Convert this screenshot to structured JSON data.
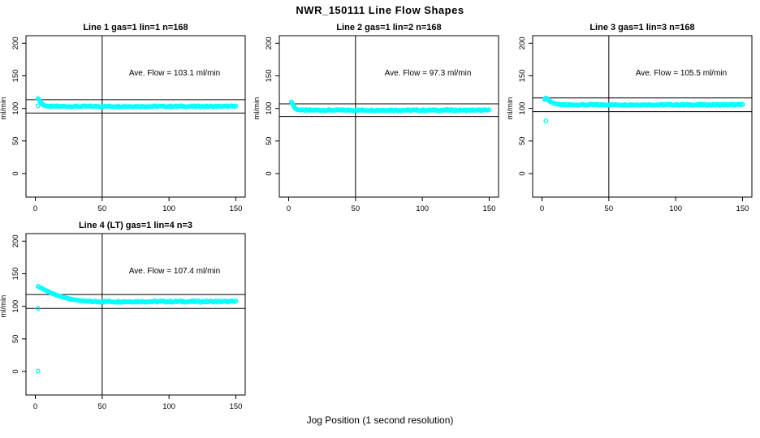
{
  "figure": {
    "title": "NWR_150111  Line Flow Shapes",
    "xlabel": "Jog Position (1 second resolution)",
    "background": "#ffffff",
    "point_color": "#00ffff",
    "line_color": "#000000"
  },
  "chart_data": {
    "type": "scatter",
    "x_ticks": [
      0,
      50,
      100,
      150
    ],
    "y_ticks": [
      0,
      50,
      100,
      150,
      200
    ],
    "xlim": [
      0,
      150
    ],
    "ylim": [
      0,
      200
    ],
    "xlabel": "Jog Position (1 second resolution)",
    "grid": false,
    "legend": "none",
    "plots": [
      {
        "title": "Line 1 gas=1 lin=1 n=168",
        "ylabel": "ml/min",
        "ave_flow": 103.1,
        "annotation": "Ave. Flow =  103.1  ml/min",
        "n": 168,
        "vline_x": 50,
        "ref_lines": [
          92.8,
          113.4
        ],
        "descent": [
          [
            2,
            115
          ],
          [
            2.5,
            114.2
          ],
          [
            3,
            112.5
          ],
          [
            3.5,
            111
          ],
          [
            4,
            109.5
          ],
          [
            4.5,
            108.2
          ],
          [
            5,
            107.1
          ],
          [
            5.5,
            106.2
          ],
          [
            6,
            105.4
          ],
          [
            6.5,
            104.9
          ],
          [
            7,
            104.4
          ],
          [
            8,
            103.8
          ],
          [
            9,
            103.5
          ],
          [
            10,
            103.3
          ]
        ],
        "tail": {
          "x_from": 11,
          "x_to": 150,
          "step": 1,
          "base": 103.1,
          "noise": 0.9
        },
        "outliers": [
          [
            2,
            104
          ]
        ]
      },
      {
        "title": "Line 2 gas=1 lin=2 n=168",
        "ylabel": "ml/min",
        "ave_flow": 97.3,
        "annotation": "Ave. Flow =  97.3  ml/min",
        "n": 168,
        "vline_x": 50,
        "ref_lines": [
          87.6,
          107.0
        ],
        "descent": [
          [
            2,
            110
          ],
          [
            2.5,
            108.5
          ],
          [
            3,
            106.5
          ],
          [
            3.5,
            104.5
          ],
          [
            4,
            102.8
          ],
          [
            4.5,
            101.3
          ],
          [
            5,
            100.2
          ],
          [
            5.5,
            99.3
          ],
          [
            6,
            98.7
          ],
          [
            7,
            98
          ],
          [
            8,
            97.6
          ]
        ],
        "tail": {
          "x_from": 9,
          "x_to": 150,
          "step": 1,
          "base": 97.3,
          "noise": 0.9
        },
        "outliers": []
      },
      {
        "title": "Line 3 gas=1 lin=3 n=168",
        "ylabel": "ml/min",
        "ave_flow": 105.5,
        "annotation": "Ave. Flow =  105.5  ml/min",
        "n": 168,
        "vline_x": 50,
        "ref_lines": [
          95.0,
          116.1
        ],
        "descent": [
          [
            2,
            113.5
          ],
          [
            2.5,
            115
          ],
          [
            3,
            116
          ],
          [
            3.5,
            115.5
          ],
          [
            4,
            114.5
          ],
          [
            4.5,
            113.5
          ],
          [
            5,
            112.5
          ],
          [
            5.5,
            111.6
          ],
          [
            6,
            110.8
          ],
          [
            6.5,
            110.1
          ],
          [
            7,
            109.5
          ],
          [
            8,
            108.6
          ],
          [
            9,
            107.9
          ],
          [
            10,
            107.3
          ],
          [
            11,
            106.9
          ],
          [
            12,
            106.5
          ],
          [
            13,
            106.2
          ],
          [
            14,
            106
          ]
        ],
        "tail": {
          "x_from": 15,
          "x_to": 150,
          "step": 1,
          "base": 105.6,
          "noise": 0.8
        },
        "outliers": [
          [
            3,
            81
          ]
        ]
      },
      {
        "title": "Line 4 (LT) gas=1 lin=4 n=3",
        "ylabel": "ml/min",
        "ave_flow": 107.4,
        "annotation": "Ave. Flow =  107.4  ml/min",
        "n": 3,
        "vline_x": 50,
        "ref_lines": [
          96.7,
          118.1
        ],
        "descent": [
          [
            2,
            130.5
          ],
          [
            3,
            129.5
          ],
          [
            4,
            128.5
          ],
          [
            5,
            127.5
          ],
          [
            6,
            126.4
          ],
          [
            7,
            125.3
          ],
          [
            8,
            124.2
          ],
          [
            9,
            123.2
          ],
          [
            10,
            122.2
          ],
          [
            11,
            121.2
          ],
          [
            12,
            120.3
          ],
          [
            13,
            119.5
          ],
          [
            14,
            118.7
          ],
          [
            15,
            117.9
          ],
          [
            16,
            117.2
          ],
          [
            17,
            116.5
          ],
          [
            18,
            115.8
          ],
          [
            19,
            115.2
          ],
          [
            20,
            114.6
          ],
          [
            21,
            114
          ],
          [
            22,
            113.4
          ],
          [
            23,
            112.9
          ],
          [
            24,
            112.4
          ],
          [
            25,
            111.9
          ],
          [
            26,
            111.4
          ],
          [
            27,
            111
          ],
          [
            28,
            110.6
          ],
          [
            29,
            110.2
          ],
          [
            30,
            109.9
          ],
          [
            31,
            109.6
          ],
          [
            32,
            109.3
          ],
          [
            33,
            109
          ],
          [
            34,
            108.8
          ],
          [
            35,
            108.5
          ],
          [
            36,
            108.3
          ],
          [
            37,
            108.1
          ],
          [
            38,
            107.9
          ],
          [
            39,
            107.8
          ],
          [
            40,
            107.6
          ]
        ],
        "tail": {
          "x_from": 41,
          "x_to": 150,
          "step": 1,
          "base": 107.3,
          "noise": 1.1
        },
        "outliers": [
          [
            2,
            97
          ],
          [
            2,
            0.5
          ]
        ]
      }
    ]
  }
}
